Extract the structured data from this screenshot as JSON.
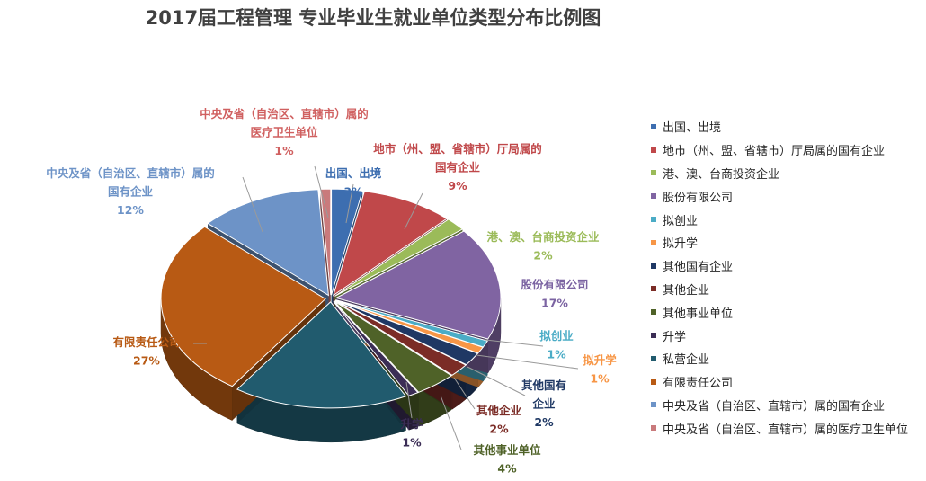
{
  "chart_data": {
    "type": "pie",
    "style": "3d-exploded",
    "title": "2017届工程管理 专业毕业生就业单位类型分布比例图",
    "legend_position": "right",
    "categories": [
      "出国、出境",
      "地市（州、盟、省辖市）厅局属的国有企业",
      "港、澳、台商投资企业",
      "股份有限公司",
      "拟创业",
      "拟升学",
      "其他国有企业",
      "其他企业",
      "其他事业单位",
      "升学",
      "私营企业",
      "有限责任公司",
      "中央及省（自治区、直辖市）属的国有企业",
      "中央及省（自治区、直辖市）属的医疗卫生单位"
    ],
    "values": [
      3,
      9,
      2,
      17,
      1,
      1,
      2,
      2,
      4,
      1,
      17,
      27,
      12,
      1
    ],
    "value_labels": [
      "3%",
      "9%",
      "2%",
      "17%",
      "1%",
      "1%",
      "2%",
      "2%",
      "4%",
      "1%",
      "",
      "27%",
      "12%",
      "1%"
    ],
    "data_labels": [
      [
        "出国、出境"
      ],
      [
        "地市（州、盟、省辖市）厅局属的",
        "国有企业"
      ],
      [
        "港、澳、台商投资企业"
      ],
      [
        "股份有限公司"
      ],
      [
        "拟创业"
      ],
      [
        "拟升学"
      ],
      [
        "其他国有",
        "企业"
      ],
      [
        "其他企业"
      ],
      [
        "其他事业单位"
      ],
      [
        "升学"
      ],
      [],
      [
        "有限责任公司"
      ],
      [
        "中央及省（自治区、直辖市）属的",
        "国有企业"
      ],
      [
        "中央及省（自治区、直辖市）属的",
        "医疗卫生单位"
      ]
    ],
    "colors": [
      "#3d6eb0",
      "#c0484a",
      "#9bbb59",
      "#8064a2",
      "#4bacc6",
      "#f79646",
      "#1f3864",
      "#7b2c26",
      "#4f6228",
      "#3b2d55",
      "#215b6e",
      "#b85a14",
      "#6d93c7",
      "#c97a7c"
    ],
    "label_colors": [
      "#3d6eb0",
      "#c0484a",
      "#9bbb59",
      "#7b63a2",
      "#4bacc6",
      "#f79646",
      "#1f3864",
      "#7b2c26",
      "#4f6228",
      "#3b2d55",
      "#215b6e",
      "#b85a14",
      "#6d93c7",
      "#d06060"
    ]
  }
}
